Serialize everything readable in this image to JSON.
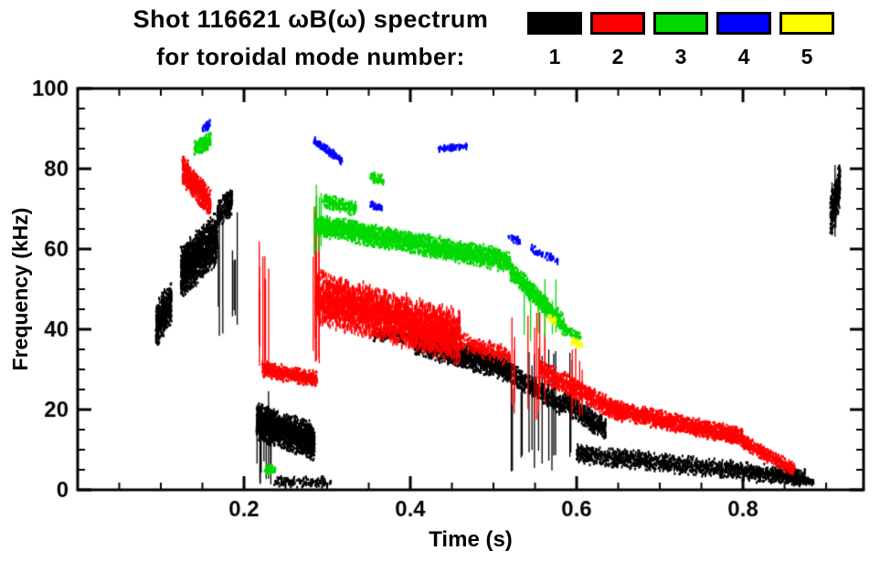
{
  "title": {
    "line1": "Shot 116621 ωB(ω) spectrum",
    "line2": "for toroidal mode number:"
  },
  "legend": {
    "modes": [
      {
        "label": "1",
        "color": "#000000"
      },
      {
        "label": "2",
        "color": "#ff0000"
      },
      {
        "label": "3",
        "color": "#00d800"
      },
      {
        "label": "4",
        "color": "#0000ff"
      },
      {
        "label": "5",
        "color": "#ffff00"
      }
    ]
  },
  "chart_data": {
    "type": "scatter",
    "title": "Shot 116621 ωB(ω) spectrum for toroidal mode number",
    "xlabel": "Time (s)",
    "ylabel": "Frequency (kHz)",
    "xlim": [
      0.0,
      0.945
    ],
    "ylim": [
      0,
      100
    ],
    "grid": false,
    "legend_position": "top-right",
    "xticks": {
      "major": [
        0.2,
        0.4,
        0.6,
        0.8
      ],
      "labels": [
        "0.2",
        "0.4",
        "0.6",
        "0.8"
      ],
      "minor_step": 0.05
    },
    "yticks": {
      "major": [
        0,
        20,
        40,
        60,
        80,
        100
      ],
      "labels": [
        "0",
        "20",
        "40",
        "60",
        "80",
        "100"
      ],
      "minor_step": 5
    },
    "series": [
      {
        "name": "mode 1",
        "color": "#000000",
        "segments": [
          {
            "t": [
              0.094,
              0.113
            ],
            "f": [
              41,
              47
            ],
            "w": 6,
            "n": 520
          },
          {
            "t": [
              0.124,
              0.168
            ],
            "f": [
              54,
              63
            ],
            "w": 7,
            "n": 1700
          },
          {
            "t": [
              0.168,
              0.186
            ],
            "f": [
              69,
              72
            ],
            "w": 4,
            "n": 220
          },
          {
            "burst": true,
            "t": [
              0.168,
              0.196
            ],
            "f": [
              38,
              72
            ],
            "n": 7
          },
          {
            "burst": true,
            "t": [
              0.213,
              0.233
            ],
            "f": [
              1,
              26
            ],
            "n": 12
          },
          {
            "t": [
              0.215,
              0.285
            ],
            "f": [
              17,
              12
            ],
            "w": 5,
            "n": 1900
          },
          {
            "t": [
              0.235,
              0.305
            ],
            "f": [
              2,
              2
            ],
            "w": 1.5,
            "n": 160
          },
          {
            "t": [
              0.355,
              0.405
            ],
            "f": [
              39,
              38
            ],
            "w": 2,
            "n": 170
          },
          {
            "t": [
              0.405,
              0.52
            ],
            "f": [
              37,
              30
            ],
            "w": 3.5,
            "n": 1500
          },
          {
            "burst": true,
            "t": [
              0.52,
              0.6
            ],
            "f": [
              3,
              36
            ],
            "n": 15
          },
          {
            "t": [
              0.52,
              0.585
            ],
            "f": [
              29,
              21
            ],
            "w": 3,
            "n": 520
          },
          {
            "t": [
              0.585,
              0.635
            ],
            "f": [
              22,
              15
            ],
            "w": 3,
            "n": 520
          },
          {
            "t": [
              0.6,
              0.875
            ],
            "f": [
              9,
              3
            ],
            "w": 2.5,
            "n": 1700
          },
          {
            "t": [
              0.855,
              0.885
            ],
            "f": [
              2.5,
              2
            ],
            "w": 1,
            "n": 120
          },
          {
            "t": [
              0.905,
              0.917
            ],
            "f": [
              68,
              76
            ],
            "w": 6,
            "n": 280
          },
          {
            "burst": true,
            "t": [
              0.906,
              0.913
            ],
            "f": [
              62,
              84
            ],
            "n": 3
          }
        ]
      },
      {
        "name": "mode 2",
        "color": "#ff0000",
        "segments": [
          {
            "t": [
              0.126,
              0.16
            ],
            "f": [
              80,
              71
            ],
            "w": 4,
            "n": 620
          },
          {
            "burst": true,
            "t": [
              0.216,
              0.229
            ],
            "f": [
              28,
              66
            ],
            "n": 8
          },
          {
            "t": [
              0.222,
              0.288
            ],
            "f": [
              30,
              27.5
            ],
            "w": 2.2,
            "n": 560
          },
          {
            "burst": true,
            "t": [
              0.281,
              0.292
            ],
            "f": [
              28,
              79
            ],
            "n": 6
          },
          {
            "t": [
              0.286,
              0.46
            ],
            "f": [
              48,
              38
            ],
            "w": 7,
            "n": 3300,
            "pw": 1.6,
            "ph": 5
          },
          {
            "t": [
              0.46,
              0.52
            ],
            "f": [
              37,
              33
            ],
            "w": 2.5,
            "n": 260
          },
          {
            "burst": true,
            "t": [
              0.52,
              0.565
            ],
            "f": [
              17,
              46
            ],
            "n": 10
          },
          {
            "t": [
              0.555,
              0.6
            ],
            "f": [
              30,
              25
            ],
            "w": 3,
            "n": 360
          },
          {
            "burst": true,
            "t": [
              0.592,
              0.607
            ],
            "f": [
              16,
              41
            ],
            "n": 5
          },
          {
            "t": [
              0.6,
              0.655
            ],
            "f": [
              25,
              19
            ],
            "w": 2.8,
            "n": 520
          },
          {
            "t": [
              0.645,
              0.8
            ],
            "f": [
              20,
              13
            ],
            "w": 2.5,
            "n": 1550
          },
          {
            "t": [
              0.8,
              0.862
            ],
            "f": [
              12,
              5
            ],
            "w": 2,
            "n": 460
          }
        ]
      },
      {
        "name": "mode 3",
        "color": "#00d800",
        "segments": [
          {
            "t": [
              0.14,
              0.16
            ],
            "f": [
              85,
              87
            ],
            "w": 2.2,
            "n": 230
          },
          {
            "t": [
              0.225,
              0.238
            ],
            "f": [
              5,
              5
            ],
            "w": 1.2,
            "n": 60
          },
          {
            "burst": true,
            "t": [
              0.282,
              0.293
            ],
            "f": [
              58,
              77
            ],
            "n": 5
          },
          {
            "t": [
              0.286,
              0.52
            ],
            "f": [
              66,
              57
            ],
            "w": 3,
            "n": 2700
          },
          {
            "t": [
              0.295,
              0.335
            ],
            "f": [
              72,
              70
            ],
            "w": 2,
            "n": 210
          },
          {
            "t": [
              0.352,
              0.368
            ],
            "f": [
              78,
              77
            ],
            "w": 1.5,
            "n": 70
          },
          {
            "t": [
              0.52,
              0.585
            ],
            "f": [
              55,
              41
            ],
            "w": 2.8,
            "n": 720
          },
          {
            "burst": true,
            "t": [
              0.53,
              0.585
            ],
            "f": [
              36,
              54
            ],
            "n": 6
          },
          {
            "t": [
              0.585,
              0.605
            ],
            "f": [
              40,
              38
            ],
            "w": 1.5,
            "n": 80
          }
        ]
      },
      {
        "name": "mode 4",
        "color": "#0000ff",
        "segments": [
          {
            "t": [
              0.15,
              0.159
            ],
            "f": [
              90,
              91
            ],
            "w": 1.2,
            "n": 45
          },
          {
            "t": [
              0.284,
              0.318
            ],
            "f": [
              87,
              82
            ],
            "w": 1.2,
            "n": 135
          },
          {
            "t": [
              0.352,
              0.366
            ],
            "f": [
              71,
              70
            ],
            "w": 1,
            "n": 40
          },
          {
            "t": [
              0.434,
              0.468
            ],
            "f": [
              85,
              85.5
            ],
            "w": 1,
            "n": 95
          },
          {
            "t": [
              0.518,
              0.532
            ],
            "f": [
              63,
              62
            ],
            "w": 1,
            "n": 35
          },
          {
            "t": [
              0.545,
              0.578
            ],
            "f": [
              60,
              57
            ],
            "w": 1.2,
            "n": 70
          }
        ]
      },
      {
        "name": "mode 5",
        "color": "#ffff00",
        "segments": [
          {
            "t": [
              0.565,
              0.575
            ],
            "f": [
              43,
              42
            ],
            "w": 1,
            "n": 25
          },
          {
            "t": [
              0.594,
              0.607
            ],
            "f": [
              37,
              36
            ],
            "w": 1.2,
            "n": 45
          }
        ]
      }
    ]
  }
}
